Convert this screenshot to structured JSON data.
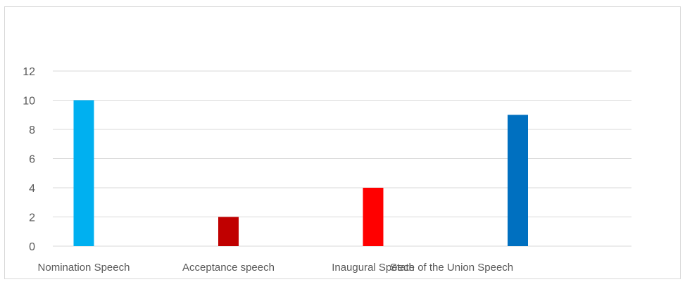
{
  "chart_data": {
    "type": "bar",
    "categories": [
      "Nomination Speech",
      "Acceptance speech",
      "Inaugural Speech",
      "State of the Union Speech"
    ],
    "values": [
      10,
      2,
      4,
      9
    ],
    "colors": [
      "#00b0f0",
      "#c00000",
      "#ff0000",
      "#0070c0"
    ],
    "title": "",
    "xlabel": "",
    "ylabel": "",
    "ylim": [
      0,
      12
    ],
    "yticks": [
      0,
      2,
      4,
      6,
      8,
      10,
      12
    ],
    "grid": true,
    "legend": "none"
  }
}
